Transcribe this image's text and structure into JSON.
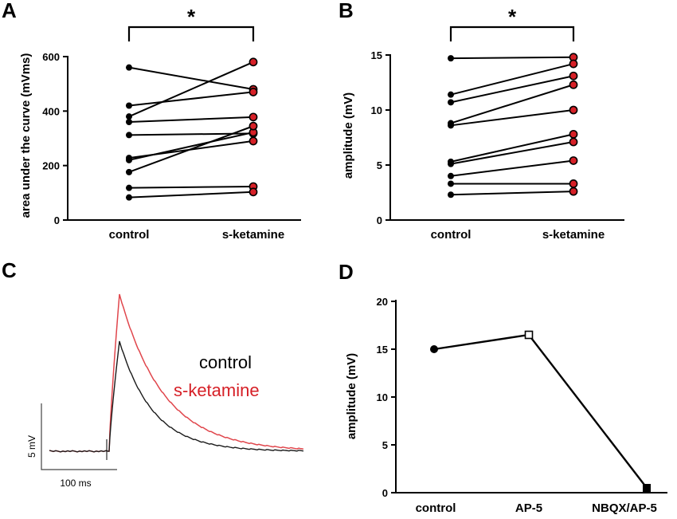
{
  "panels": {
    "A": "A",
    "B": "B",
    "C": "C",
    "D": "D"
  },
  "colors": {
    "black": "#000000",
    "red": "#d62027",
    "trace_black": "#1a1a1a",
    "trace_red": "#e0464c"
  },
  "chart_data": [
    {
      "id": "A",
      "type": "paired-line",
      "ylabel": "area under the curve (mVms)",
      "categories": [
        "control",
        "s-ketamine"
      ],
      "yticks": [
        0,
        200,
        400,
        600
      ],
      "ylim": [
        0,
        600
      ],
      "significance": "*",
      "pairs": [
        [
          560,
          480
        ],
        [
          420,
          470
        ],
        [
          380,
          580
        ],
        [
          360,
          378
        ],
        [
          312,
          318
        ],
        [
          228,
          290
        ],
        [
          220,
          322
        ],
        [
          176,
          345
        ],
        [
          118,
          123
        ],
        [
          83,
          103
        ]
      ]
    },
    {
      "id": "B",
      "type": "paired-line",
      "ylabel": "amplitude (mV)",
      "categories": [
        "control",
        "s-ketamine"
      ],
      "yticks": [
        0,
        5,
        10,
        15
      ],
      "ylim": [
        0,
        15
      ],
      "significance": "*",
      "pairs": [
        [
          14.7,
          14.8
        ],
        [
          11.4,
          14.2
        ],
        [
          10.7,
          13.1
        ],
        [
          8.8,
          12.3
        ],
        [
          8.6,
          10.0
        ],
        [
          5.3,
          7.8
        ],
        [
          5.1,
          7.1
        ],
        [
          4.0,
          5.4
        ],
        [
          3.3,
          3.3
        ],
        [
          2.3,
          2.6
        ]
      ]
    },
    {
      "id": "C",
      "type": "trace",
      "legend": [
        "control",
        "s-ketamine"
      ],
      "scalebar_y": "5 mV",
      "scalebar_x": "100 ms"
    },
    {
      "id": "D",
      "type": "line",
      "ylabel": "amplitude (mV)",
      "categories": [
        "control",
        "AP-5",
        "NBQX/AP-5"
      ],
      "values": [
        15.0,
        16.5,
        0.5
      ],
      "markers": [
        "circle",
        "open-square",
        "square"
      ],
      "yticks": [
        0,
        5,
        10,
        15,
        20
      ],
      "ylim": [
        0,
        20
      ]
    }
  ]
}
